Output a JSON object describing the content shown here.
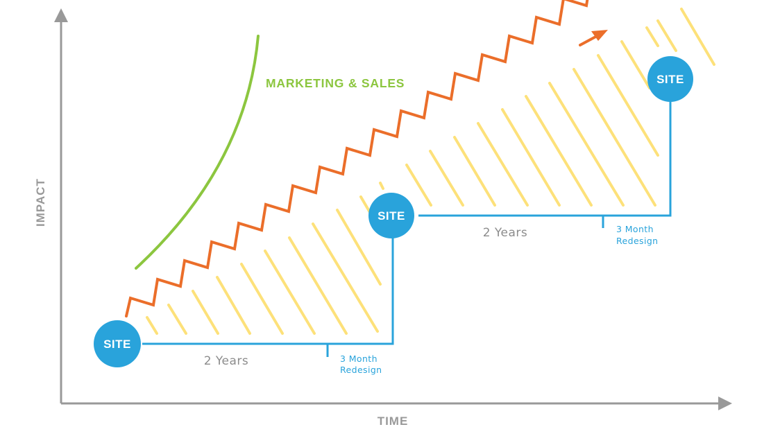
{
  "axes": {
    "y_label": "IMPACT",
    "x_label": "TIME"
  },
  "curve": {
    "label": "MARKETING & SALES"
  },
  "stages": [
    {
      "site_label": "SITE",
      "duration_label": "2 Years",
      "redesign_label_line1": "3 Month",
      "redesign_label_line2": "Redesign"
    },
    {
      "site_label": "SITE",
      "duration_label": "2 Years",
      "redesign_label_line1": "3 Month",
      "redesign_label_line2": "Redesign"
    },
    {
      "site_label": "SITE"
    }
  ],
  "colors": {
    "axis": "#999999",
    "blue": "#29a3db",
    "orange": "#eb6e2a",
    "green": "#8cc63f",
    "yellow": "#fde17a",
    "site_text": "#ffffff",
    "years_text": "#8c8c8c",
    "redesign_text": "#29a3db"
  }
}
